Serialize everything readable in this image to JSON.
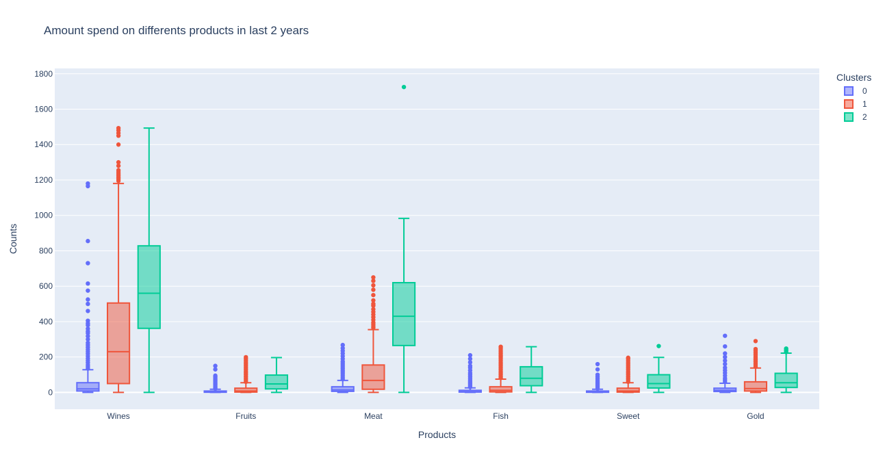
{
  "chart_data": {
    "type": "box",
    "title": "Amount spend on differents products in last 2 years",
    "xlabel": "Products",
    "ylabel": "Counts",
    "ylim": [
      -95,
      1830
    ],
    "yticks": [
      0,
      200,
      400,
      600,
      800,
      1000,
      1200,
      1400,
      1600,
      1800
    ],
    "categories": [
      "Wines",
      "Fruits",
      "Meat",
      "Fish",
      "Sweet",
      "Gold"
    ],
    "legend": {
      "title": "Clusters",
      "position": "top-right"
    },
    "series": [
      {
        "name": "0",
        "color": "#636efa",
        "boxes": [
          {
            "min": 0,
            "q1": 8,
            "median": 20,
            "q3": 55,
            "max": 128,
            "outliers": [
              135,
              145,
              155,
              168,
              180,
              192,
              205,
              218,
              230,
              242,
              255,
              268,
              280,
              300,
              318,
              335,
              345,
              360,
              380,
              390,
              405,
              460,
              500,
              525,
              575,
              615,
              730,
              855,
              1165,
              1180
            ]
          },
          {
            "min": 0,
            "q1": 1,
            "median": 3,
            "q3": 8,
            "max": 18,
            "outliers": [
              22,
              28,
              35,
              42,
              50,
              58,
              65,
              72,
              80,
              88,
              95,
              130,
              150
            ]
          },
          {
            "min": 0,
            "q1": 6,
            "median": 14,
            "q3": 32,
            "max": 68,
            "outliers": [
              75,
              85,
              95,
              105,
              115,
              125,
              135,
              145,
              155,
              165,
              175,
              190,
              205,
              220,
              235,
              250,
              268
            ]
          },
          {
            "min": 0,
            "q1": 2,
            "median": 4,
            "q3": 12,
            "max": 26,
            "outliers": [
              30,
              38,
              46,
              54,
              62,
              70,
              80,
              90,
              100,
              110,
              125,
              140,
              150,
              170,
              190,
              210
            ]
          },
          {
            "min": 0,
            "q1": 1,
            "median": 3,
            "q3": 8,
            "max": 18,
            "outliers": [
              22,
              30,
              38,
              46,
              54,
              62,
              70,
              80,
              90,
              100,
              130,
              160
            ]
          },
          {
            "min": 0,
            "q1": 5,
            "median": 12,
            "q3": 24,
            "max": 52,
            "outliers": [
              60,
              70,
              80,
              95,
              110,
              125,
              140,
              160,
              180,
              200,
              220,
              260,
              320
            ]
          }
        ]
      },
      {
        "name": "1",
        "color": "#ef553b",
        "boxes": [
          {
            "min": 0,
            "q1": 50,
            "median": 230,
            "q3": 505,
            "max": 1180,
            "outliers": [
              1195,
              1205,
              1215,
              1225,
              1235,
              1245,
              1255,
              1280,
              1300,
              1400,
              1450,
              1465,
              1480,
              1493
            ]
          },
          {
            "min": 0,
            "q1": 2,
            "median": 8,
            "q3": 24,
            "max": 55,
            "outliers": [
              60,
              70,
              80,
              90,
              100,
              110,
              120,
              130,
              140,
              150,
              160,
              170,
              180,
              190,
              199
            ]
          },
          {
            "min": 0,
            "q1": 18,
            "median": 68,
            "q3": 155,
            "max": 355,
            "outliers": [
              365,
              375,
              385,
              395,
              410,
              425,
              440,
              455,
              470,
              490,
              500,
              520,
              550,
              580,
              605,
              630,
              650
            ]
          },
          {
            "min": 0,
            "q1": 3,
            "median": 12,
            "q3": 32,
            "max": 75,
            "outliers": [
              82,
              90,
              100,
              110,
              120,
              130,
              140,
              150,
              160,
              170,
              180,
              190,
              200,
              210,
              220,
              230,
              240,
              250,
              258
            ]
          },
          {
            "min": 0,
            "q1": 2,
            "median": 8,
            "q3": 24,
            "max": 55,
            "outliers": [
              60,
              70,
              80,
              90,
              100,
              110,
              120,
              130,
              140,
              150,
              160,
              170,
              180,
              190,
              196
            ]
          },
          {
            "min": 0,
            "q1": 8,
            "median": 22,
            "q3": 60,
            "max": 138,
            "outliers": [
              145,
              155,
              165,
              175,
              185,
              195,
              205,
              215,
              225,
              235,
              245,
              290
            ]
          }
        ]
      },
      {
        "name": "2",
        "color": "#00cc96",
        "boxes": [
          {
            "min": 0,
            "q1": 362,
            "median": 560,
            "q3": 828,
            "max": 1493,
            "outliers": []
          },
          {
            "min": 0,
            "q1": 20,
            "median": 48,
            "q3": 98,
            "max": 197,
            "outliers": []
          },
          {
            "min": 0,
            "q1": 265,
            "median": 430,
            "q3": 620,
            "max": 983,
            "outliers": [
              1725
            ]
          },
          {
            "min": 0,
            "q1": 38,
            "median": 80,
            "q3": 145,
            "max": 258,
            "outliers": []
          },
          {
            "min": 0,
            "q1": 25,
            "median": 50,
            "q3": 100,
            "max": 198,
            "outliers": [
              262
            ]
          },
          {
            "min": 0,
            "q1": 28,
            "median": 55,
            "q3": 108,
            "max": 222,
            "outliers": [
              228,
              235,
              242,
              248
            ]
          }
        ]
      }
    ]
  }
}
